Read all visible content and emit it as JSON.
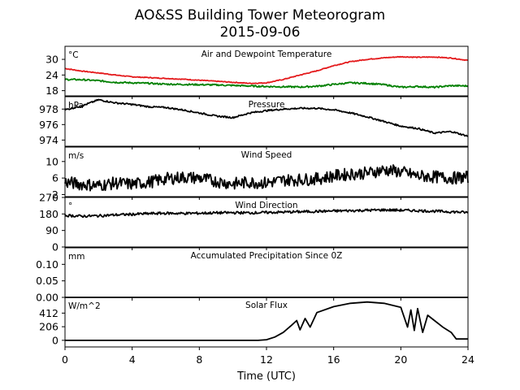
{
  "chart_data": {
    "type": "line",
    "title": "AO&SS Building Tower Meteorogram",
    "subtitle": "2015-09-06",
    "xlabel": "Time (UTC)",
    "xlim": [
      0,
      24
    ],
    "x_ticks": [
      0,
      4,
      8,
      12,
      16,
      20,
      24
    ],
    "x_tick_labels": [
      "0",
      "4",
      "8",
      "12",
      "16",
      "20",
      "24"
    ],
    "panels": [
      {
        "id": "temperature",
        "title": "Air and Dewpoint Temperature",
        "unit": "°C",
        "ylim": [
          16,
          35
        ],
        "y_ticks": [
          18,
          24,
          30
        ],
        "y_tick_labels": [
          "18",
          "24",
          "30"
        ],
        "series": [
          {
            "color": "#e41a1c",
            "x": [
              0,
              1,
              2,
              3,
              4,
              5,
              6,
              7,
              8,
              9,
              10,
              11,
              12,
              13,
              14,
              15,
              16,
              17,
              18,
              19,
              20,
              21,
              22,
              23,
              24
            ],
            "y": [
              26.5,
              25.5,
              24.8,
              24.0,
              23.3,
              23.0,
              22.7,
              22.4,
              22.0,
              21.6,
              21.2,
              20.8,
              21.0,
              22.3,
              24.0,
              25.6,
              27.6,
              29.1,
              30.0,
              30.6,
              31.0,
              30.8,
              30.9,
              30.5,
              29.6
            ],
            "noise": 0.15
          },
          {
            "color": "#008000",
            "x": [
              0,
              1,
              2,
              3,
              4,
              5,
              6,
              7,
              8,
              9,
              10,
              11,
              12,
              13,
              14,
              15,
              16,
              17,
              18,
              19,
              20,
              21,
              22,
              23,
              24
            ],
            "y": [
              22.3,
              22.2,
              21.8,
              21.2,
              21.0,
              20.8,
              20.5,
              20.4,
              20.3,
              20.2,
              20.0,
              19.8,
              19.6,
              19.5,
              19.4,
              19.7,
              20.4,
              21.0,
              20.8,
              20.3,
              19.3,
              19.6,
              19.3,
              19.9,
              19.8
            ],
            "noise": 0.3
          }
        ]
      },
      {
        "id": "pressure",
        "title": "Pressure",
        "unit": "hPa",
        "ylim": [
          973.2,
          979.6
        ],
        "y_ticks": [
          974,
          976,
          978
        ],
        "y_tick_labels": [
          "974",
          "976",
          "978"
        ],
        "series": [
          {
            "color": "#000000",
            "x": [
              0,
              1,
              2,
              3,
              4,
              5,
              6,
              7,
              8,
              9,
              10,
              11,
              12,
              13,
              14,
              15,
              16,
              17,
              18,
              19,
              20,
              21,
              22,
              23,
              24
            ],
            "y": [
              977.9,
              978.4,
              979.2,
              978.8,
              978.6,
              978.3,
              978.2,
              977.9,
              977.5,
              977.1,
              976.9,
              977.5,
              977.8,
              978.0,
              978.1,
              978.1,
              977.9,
              977.5,
              977.0,
              976.4,
              975.8,
              975.5,
              974.9,
              975.1,
              974.5
            ],
            "noise": 0.1
          }
        ]
      },
      {
        "id": "wind_speed",
        "title": "Wind Speed",
        "unit": "m/s",
        "ylim": [
          1.5,
          13.5
        ],
        "y_ticks": [
          2,
          6,
          10
        ],
        "y_tick_labels": [
          "2",
          "6",
          "10"
        ],
        "series": [
          {
            "color": "#000000",
            "x": [
              0,
              1,
              2,
              3,
              4,
              5,
              6,
              7,
              8,
              9,
              10,
              11,
              12,
              13,
              14,
              15,
              16,
              17,
              18,
              19,
              20,
              21,
              22,
              23,
              24
            ],
            "y": [
              5.0,
              4.5,
              4.2,
              4.8,
              4.5,
              5.0,
              5.8,
              6.2,
              6.0,
              5.2,
              4.6,
              5.0,
              4.8,
              5.5,
              5.6,
              5.8,
              6.5,
              7.0,
              7.2,
              8.0,
              7.5,
              6.5,
              6.3,
              6.0,
              6.2
            ],
            "noise": 1.5
          }
        ]
      },
      {
        "id": "wind_direction",
        "title": "Wind Direction",
        "unit": "°",
        "ylim": [
          0,
          270
        ],
        "y_ticks": [
          0,
          90,
          180,
          270
        ],
        "y_tick_labels": [
          "0",
          "90",
          "180",
          "270"
        ],
        "series": [
          {
            "color": "#000000",
            "x": [
              0,
              1,
              2,
              3,
              4,
              5,
              6,
              7,
              8,
              9,
              10,
              11,
              12,
              13,
              14,
              15,
              16,
              17,
              18,
              19,
              20,
              21,
              22,
              23,
              24
            ],
            "y": [
              172,
              168,
              170,
              175,
              178,
              182,
              184,
              183,
              184,
              186,
              187,
              186,
              188,
              190,
              192,
              194,
              196,
              198,
              200,
              202,
              200,
              198,
              195,
              192,
              188
            ],
            "noise": 7
          }
        ]
      },
      {
        "id": "precipitation",
        "title": "Accumulated Precipitation Since 0Z",
        "unit": "mm",
        "ylim": [
          0,
          0.15
        ],
        "y_ticks": [
          0.0,
          0.05,
          0.1
        ],
        "y_tick_labels": [
          "0.00",
          "0.05",
          "0.10"
        ],
        "series": [
          {
            "color": "#000000",
            "x": [
              0,
              24
            ],
            "y": [
              0,
              0
            ],
            "noise": 0
          }
        ]
      },
      {
        "id": "solar",
        "title": "Solar Flux",
        "unit": "W/m^2",
        "ylim": [
          -100,
          650
        ],
        "y_ticks": [
          0,
          206,
          412
        ],
        "y_tick_labels": [
          "0",
          "206",
          "412"
        ],
        "series": [
          {
            "color": "#000000",
            "x": [
              0,
              11.5,
              12,
              12.5,
              13,
              13.5,
              13.8,
              14.0,
              14.3,
              14.6,
              15.0,
              16,
              17,
              18,
              19,
              20,
              20.4,
              20.6,
              20.8,
              21.0,
              21.3,
              21.6,
              22.0,
              22.5,
              23.0,
              23.3,
              24
            ],
            "y": [
              0,
              0,
              10,
              50,
              120,
              230,
              300,
              160,
              330,
              200,
              420,
              510,
              560,
              580,
              560,
              500,
              200,
              460,
              150,
              480,
              120,
              380,
              300,
              200,
              120,
              20,
              20
            ],
            "noise": 0
          }
        ]
      }
    ]
  }
}
